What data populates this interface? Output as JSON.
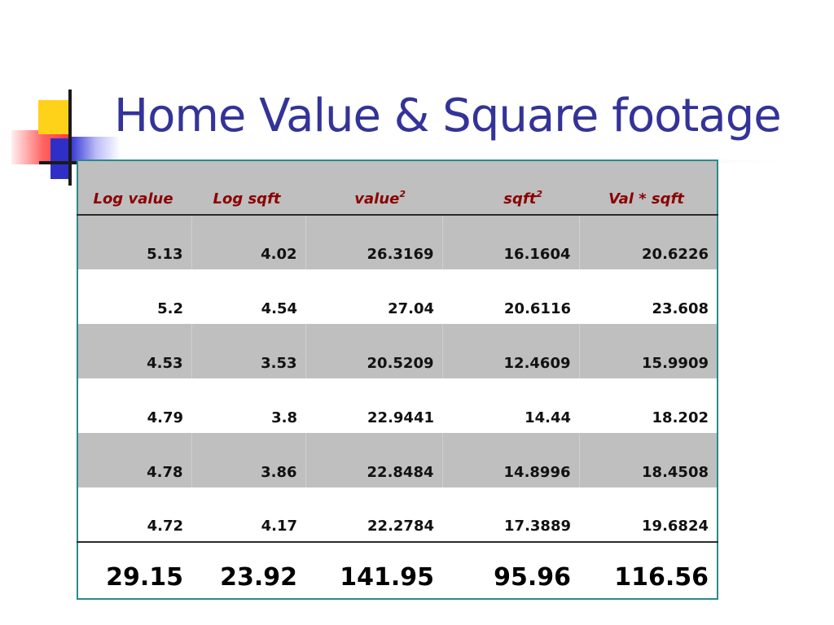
{
  "slide": {
    "title": "Home Value & Square footage"
  },
  "table": {
    "headers": [
      "Log value",
      "Log sqft",
      "value",
      "sqft",
      "Val  *  sqft"
    ],
    "header_superscripts": [
      "",
      "",
      "2",
      "2",
      ""
    ],
    "rows": [
      [
        "5.13",
        "4.02",
        "26.3169",
        "16.1604",
        "20.6226"
      ],
      [
        "5.2",
        "4.54",
        "27.04",
        "20.6116",
        "23.608"
      ],
      [
        "4.53",
        "3.53",
        "20.5209",
        "12.4609",
        "15.9909"
      ],
      [
        "4.79",
        "3.8",
        "22.9441",
        "14.44",
        "18.202"
      ],
      [
        "4.78",
        "3.86",
        "22.8484",
        "14.8996",
        "18.4508"
      ],
      [
        "4.72",
        "4.17",
        "22.2784",
        "17.3889",
        "19.6824"
      ]
    ],
    "totals": [
      "29.15",
      "23.92",
      "141.95",
      "95.96",
      "116.56"
    ]
  },
  "colors": {
    "title": "#333399",
    "header_text": "#8b0000",
    "row_shade": "#bfbfbf",
    "table_border": "#2b8a8a",
    "accent_yellow": "#ffd21a",
    "accent_blue": "#2f2fc8",
    "accent_red": "#ff3a3a"
  }
}
